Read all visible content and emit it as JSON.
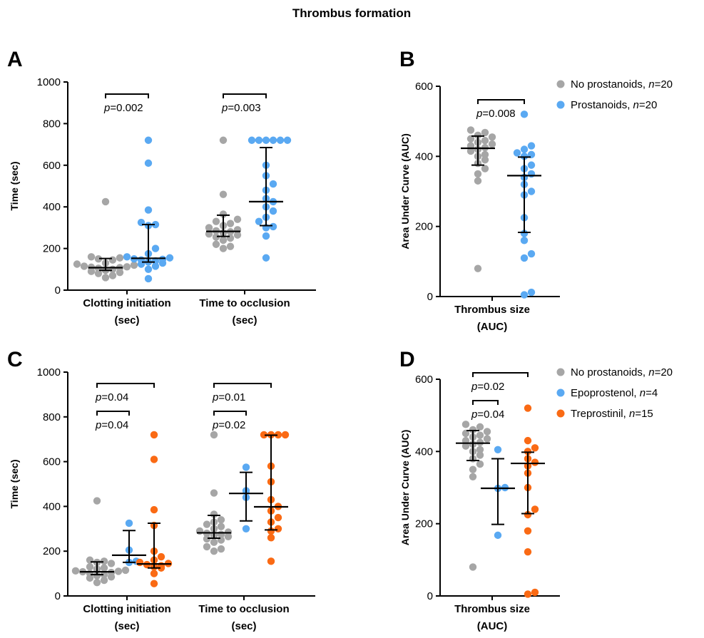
{
  "figure_title": "Thrombus formation",
  "colors": {
    "no_prostanoids": "#a6a6a6",
    "prostanoids": "#5aa9f2",
    "epoprostenol": "#5aa9f2",
    "treprostinil": "#fa6a14",
    "axis": "#000000"
  },
  "legends": {
    "B": [
      {
        "key": "none",
        "pre": "No prostanoids, ",
        "n": "n",
        "val": "=20"
      },
      {
        "key": "pro",
        "pre": "Prostanoids, ",
        "n": "n",
        "val": "=20"
      }
    ],
    "D": [
      {
        "key": "none",
        "pre": "No prostanoids, ",
        "n": "n",
        "val": "=20"
      },
      {
        "key": "epo",
        "pre": "Epoprostenol, ",
        "n": "n",
        "val": "=4"
      },
      {
        "key": "tre",
        "pre": "Treprostinil, ",
        "n": "n",
        "val": "=15"
      }
    ]
  },
  "chart_data": [
    {
      "panel": "A",
      "type": "scatter",
      "title": "",
      "ylabel": "Time (sec)",
      "ylim": [
        0,
        1000
      ],
      "yticks": [
        0,
        200,
        400,
        600,
        800,
        1000
      ],
      "categories": [
        {
          "line1": "Clotting initiation",
          "line2": "(sec)"
        },
        {
          "line1": "Time to occlusion",
          "line2": "(sec)"
        }
      ],
      "groups": [
        {
          "cat": 0,
          "slot": 0,
          "series": "none",
          "median": 108,
          "q1": 95,
          "q3": 152,
          "values": [
            425,
            160,
            155,
            150,
            145,
            130,
            125,
            120,
            115,
            112,
            110,
            108,
            105,
            100,
            95,
            90,
            85,
            80,
            70,
            60
          ]
        },
        {
          "cat": 0,
          "slot": 1,
          "series": "pro",
          "median": 153,
          "q1": 135,
          "q3": 315,
          "values": [
            720,
            610,
            385,
            325,
            315,
            310,
            200,
            175,
            160,
            155,
            150,
            148,
            145,
            140,
            135,
            130,
            125,
            115,
            100,
            55
          ]
        },
        {
          "cat": 1,
          "slot": 0,
          "series": "none",
          "median": 282,
          "q1": 258,
          "q3": 360,
          "values": [
            720,
            460,
            365,
            340,
            330,
            320,
            310,
            300,
            290,
            285,
            280,
            275,
            270,
            265,
            255,
            250,
            240,
            220,
            210,
            200
          ]
        },
        {
          "cat": 1,
          "slot": 1,
          "series": "pro",
          "median": 425,
          "q1": 310,
          "q3": 685,
          "values": [
            720,
            720,
            720,
            720,
            720,
            720,
            600,
            550,
            510,
            480,
            440,
            425,
            400,
            380,
            350,
            330,
            305,
            300,
            260,
            155
          ]
        }
      ],
      "brackets": [
        {
          "from": [
            0,
            0
          ],
          "to": [
            0,
            1
          ],
          "level": 0,
          "p": "p",
          "val": "=0.002"
        },
        {
          "from": [
            1,
            0
          ],
          "to": [
            1,
            1
          ],
          "level": 0,
          "p": "p",
          "val": "=0.003"
        }
      ]
    },
    {
      "panel": "B",
      "type": "scatter",
      "title": "",
      "ylabel": "Area Under Curve (AUC)",
      "ylim": [
        0,
        600
      ],
      "yticks": [
        0,
        200,
        400,
        600
      ],
      "categories": [
        {
          "line1": "Thrombus size",
          "line2": "(AUC)"
        }
      ],
      "groups": [
        {
          "cat": 0,
          "slot": 0,
          "series": "none",
          "median": 423,
          "q1": 375,
          "q3": 458,
          "values": [
            475,
            468,
            460,
            455,
            450,
            445,
            440,
            435,
            430,
            425,
            420,
            415,
            405,
            400,
            390,
            380,
            365,
            350,
            330,
            80
          ]
        },
        {
          "cat": 0,
          "slot": 1,
          "series": "pro",
          "median": 345,
          "q1": 183,
          "q3": 398,
          "values": [
            520,
            430,
            420,
            410,
            405,
            400,
            375,
            365,
            350,
            340,
            320,
            300,
            290,
            225,
            180,
            160,
            122,
            110,
            12,
            5
          ]
        }
      ],
      "brackets": [
        {
          "from": [
            0,
            0
          ],
          "to": [
            0,
            1
          ],
          "level": 0,
          "p": "p",
          "val": "=0.008"
        }
      ]
    },
    {
      "panel": "C",
      "type": "scatter",
      "title": "",
      "ylabel": "Time (sec)",
      "ylim": [
        0,
        1000
      ],
      "yticks": [
        0,
        200,
        400,
        600,
        800,
        1000
      ],
      "categories": [
        {
          "line1": "Clotting initiation",
          "line2": "(sec)"
        },
        {
          "line1": "Time to occlusion",
          "line2": "(sec)"
        }
      ],
      "groups": [
        {
          "cat": 0,
          "slot": 0,
          "series": "none",
          "median": 108,
          "q1": 95,
          "q3": 152,
          "values": [
            425,
            160,
            155,
            150,
            145,
            130,
            125,
            120,
            115,
            112,
            110,
            108,
            105,
            100,
            95,
            90,
            85,
            80,
            70,
            60
          ]
        },
        {
          "cat": 0,
          "slot": 1,
          "series": "epo",
          "median": 182,
          "q1": 150,
          "q3": 292,
          "values": [
            325,
            205,
            155,
            150
          ]
        },
        {
          "cat": 0,
          "slot": 2,
          "series": "tre",
          "median": 143,
          "q1": 125,
          "q3": 325,
          "values": [
            720,
            610,
            385,
            315,
            200,
            175,
            160,
            150,
            145,
            140,
            135,
            130,
            125,
            100,
            55
          ]
        },
        {
          "cat": 1,
          "slot": 0,
          "series": "none",
          "median": 282,
          "q1": 258,
          "q3": 360,
          "values": [
            720,
            460,
            365,
            340,
            330,
            320,
            310,
            300,
            290,
            285,
            280,
            275,
            270,
            265,
            255,
            250,
            240,
            220,
            210,
            200
          ]
        },
        {
          "cat": 1,
          "slot": 1,
          "series": "epo",
          "median": 458,
          "q1": 335,
          "q3": 552,
          "values": [
            575,
            470,
            440,
            300
          ]
        },
        {
          "cat": 1,
          "slot": 2,
          "series": "tre",
          "median": 398,
          "q1": 295,
          "q3": 718,
          "values": [
            720,
            720,
            720,
            720,
            580,
            510,
            430,
            400,
            380,
            350,
            330,
            300,
            290,
            260,
            155
          ]
        }
      ],
      "brackets": [
        {
          "from": [
            0,
            0
          ],
          "to": [
            0,
            1
          ],
          "level": 0,
          "p": "p",
          "val": "=0.04"
        },
        {
          "from": [
            0,
            0
          ],
          "to": [
            0,
            2
          ],
          "level": 1,
          "p": "p",
          "val": "=0.04"
        },
        {
          "from": [
            1,
            0
          ],
          "to": [
            1,
            1
          ],
          "level": 0,
          "p": "p",
          "val": "=0.02"
        },
        {
          "from": [
            1,
            0
          ],
          "to": [
            1,
            2
          ],
          "level": 1,
          "p": "p",
          "val": "=0.01"
        }
      ]
    },
    {
      "panel": "D",
      "type": "scatter",
      "title": "",
      "ylabel": "Area Under Curve (AUC)",
      "ylim": [
        0,
        600
      ],
      "yticks": [
        0,
        200,
        400,
        600
      ],
      "categories": [
        {
          "line1": "Thrombus size",
          "line2": "(AUC)"
        }
      ],
      "groups": [
        {
          "cat": 0,
          "slot": 0,
          "series": "none",
          "median": 423,
          "q1": 375,
          "q3": 458,
          "values": [
            475,
            468,
            460,
            455,
            450,
            445,
            440,
            435,
            430,
            425,
            420,
            415,
            405,
            400,
            390,
            380,
            365,
            350,
            330,
            80
          ]
        },
        {
          "cat": 0,
          "slot": 1,
          "series": "epo",
          "median": 298,
          "q1": 198,
          "q3": 380,
          "values": [
            405,
            300,
            298,
            168
          ]
        },
        {
          "cat": 0,
          "slot": 2,
          "series": "tre",
          "median": 367,
          "q1": 228,
          "q3": 398,
          "values": [
            520,
            430,
            410,
            400,
            380,
            370,
            360,
            340,
            300,
            240,
            225,
            122,
            10,
            5,
            180
          ]
        }
      ],
      "brackets": [
        {
          "from": [
            0,
            0
          ],
          "to": [
            0,
            1
          ],
          "level": 0,
          "p": "p",
          "val": "=0.04"
        },
        {
          "from": [
            0,
            0
          ],
          "to": [
            0,
            2
          ],
          "level": 1,
          "p": "p",
          "val": "=0.02"
        }
      ]
    }
  ]
}
